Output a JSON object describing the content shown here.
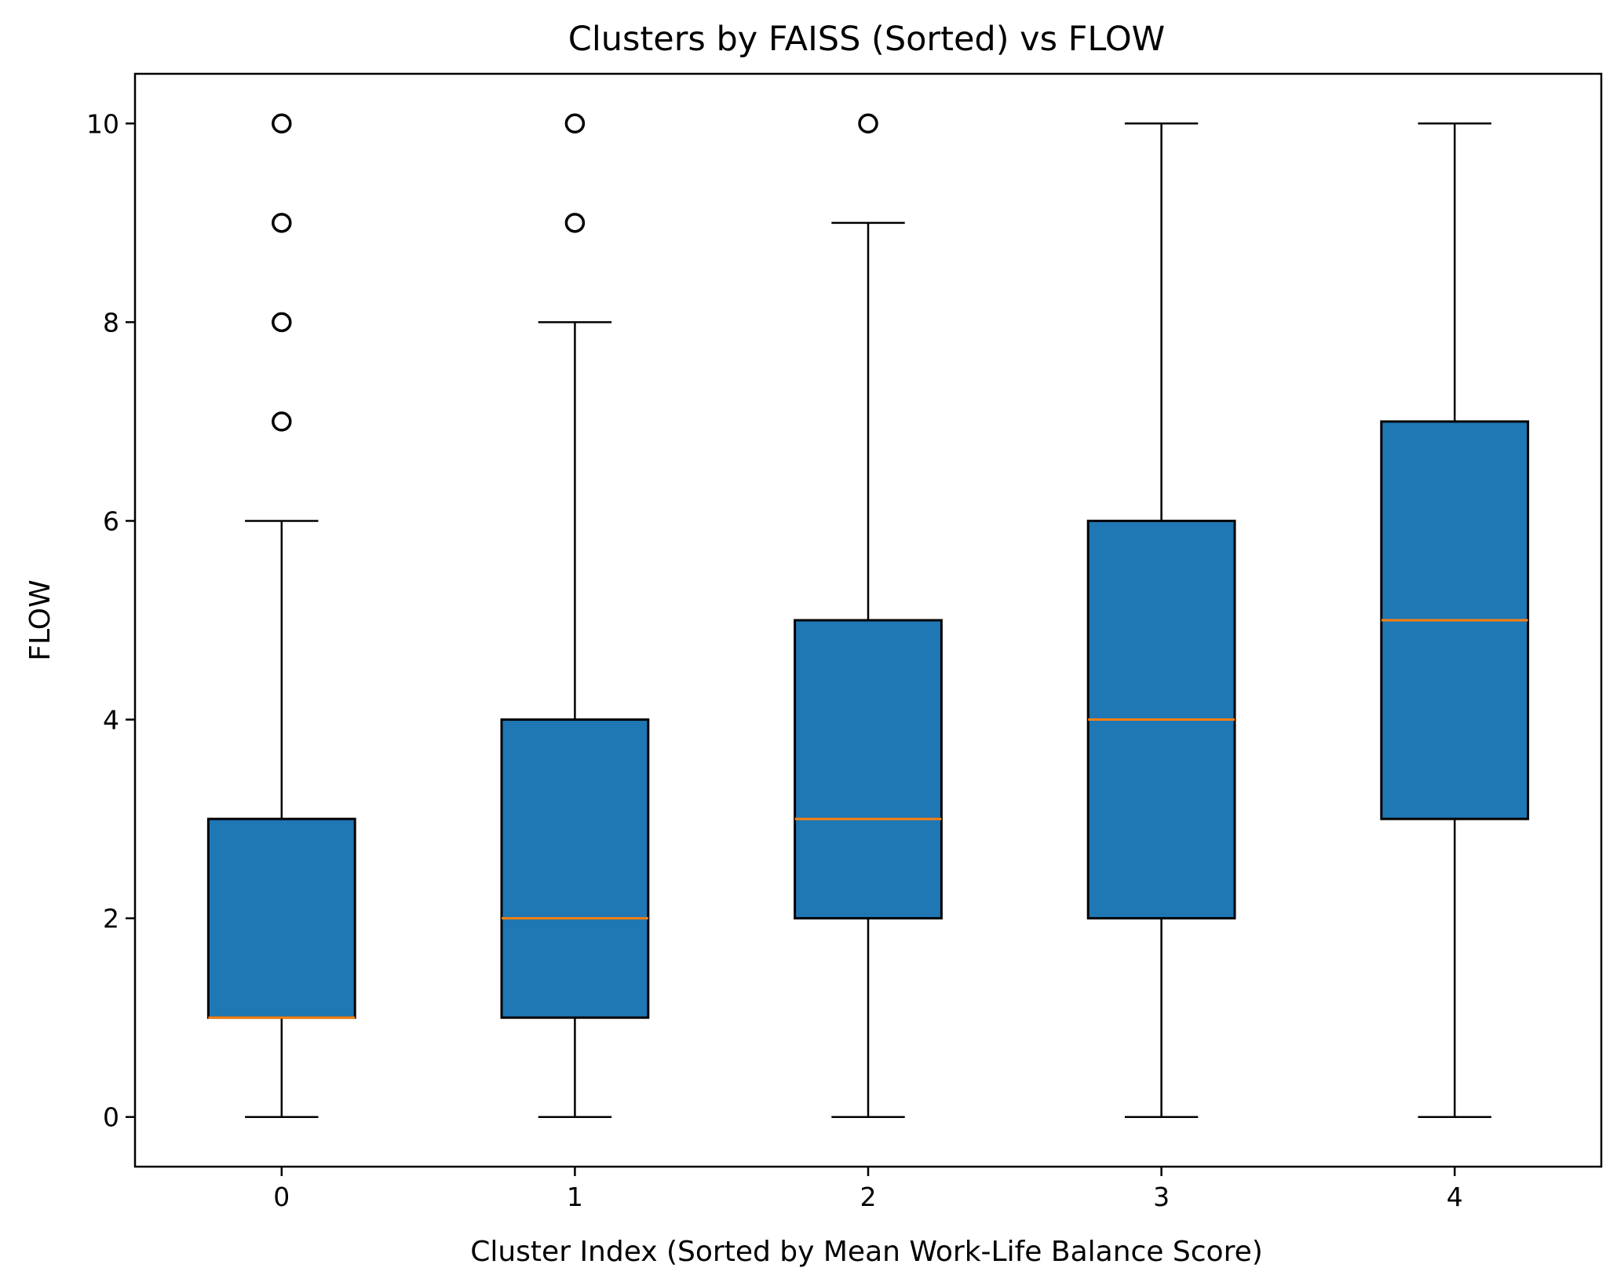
{
  "chart_data": {
    "type": "box",
    "title": "Clusters by FAISS (Sorted) vs FLOW",
    "xlabel": "Cluster Index (Sorted by Mean Work-Life Balance Score)",
    "ylabel": "FLOW",
    "categories": [
      "0",
      "1",
      "2",
      "3",
      "4"
    ],
    "ylim": [
      -0.5,
      10.5
    ],
    "yticks": [
      0,
      2,
      4,
      6,
      8,
      10
    ],
    "grid": false,
    "legend": "none",
    "box_color": "#1f77b4",
    "median_color": "#ff7f0e",
    "boxes": [
      {
        "category": "0",
        "whisker_low": 0,
        "q1": 1,
        "median": 1,
        "q3": 3,
        "whisker_high": 6,
        "outliers": [
          7,
          8,
          9,
          10
        ]
      },
      {
        "category": "1",
        "whisker_low": 0,
        "q1": 1,
        "median": 2,
        "q3": 4,
        "whisker_high": 8,
        "outliers": [
          9,
          10
        ]
      },
      {
        "category": "2",
        "whisker_low": 0,
        "q1": 2,
        "median": 3,
        "q3": 5,
        "whisker_high": 9,
        "outliers": [
          10
        ]
      },
      {
        "category": "3",
        "whisker_low": 0,
        "q1": 2,
        "median": 4,
        "q3": 6,
        "whisker_high": 10,
        "outliers": []
      },
      {
        "category": "4",
        "whisker_low": 0,
        "q1": 3,
        "median": 5,
        "q3": 7,
        "whisker_high": 10,
        "outliers": []
      }
    ]
  }
}
